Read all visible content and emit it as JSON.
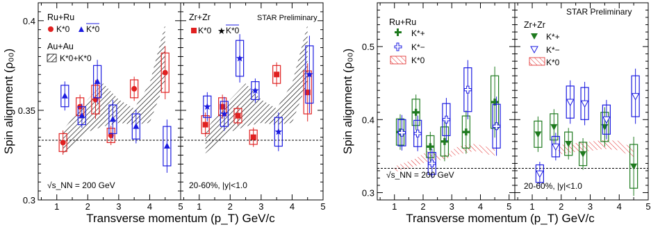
{
  "chart_data": [
    {
      "type": "scatter",
      "ylabel": "Spin alignment (ρ₀₀)",
      "xlabel": "Transverse momentum (p_T) GeV/c",
      "ylim": [
        0.3,
        0.41
      ],
      "yticks": [
        0.3,
        0.35,
        0.4
      ],
      "ytick_labels": [
        "0.3",
        "0.35",
        "0.4"
      ],
      "reference_line": 0.3333,
      "panels": [
        {
          "xlim": [
            0.4,
            5.0
          ],
          "xticks": [
            1,
            2,
            3,
            4,
            5
          ],
          "xtick_labels": [
            "1",
            "2",
            "3",
            "4",
            "5"
          ],
          "legend": {
            "system": "Ru+Ru",
            "neutral": "K*0",
            "anti": "K*0",
            "band_system": "Au+Au",
            "band_label": "K*0+K*0"
          },
          "annotation": "√s_NN = 200 GeV",
          "series": [
            {
              "kind": "K*0",
              "color": "#e02020",
              "marker": "circle",
              "x": [
                1.2,
                1.75,
                2.25,
                2.75,
                3.5,
                4.5
              ],
              "y": [
                0.332,
                0.352,
                0.356,
                0.336,
                0.362,
                0.371
              ],
              "sys": [
                0.005,
                0.005,
                0.008,
                0.004,
                0.005,
                0.011
              ]
            },
            {
              "kind": "antiK*0",
              "color": "#1a1ae0",
              "marker": "triangle",
              "x": [
                1.2,
                1.75,
                2.25,
                2.75,
                3.5,
                4.5
              ],
              "y": [
                0.358,
                0.347,
                0.366,
                0.345,
                0.341,
                0.33
              ],
              "sys": [
                0.006,
                0.005,
                0.009,
                0.008,
                0.007,
                0.011
              ]
            }
          ],
          "band": {
            "x": [
              1.2,
              2.0,
              2.5,
              3.0,
              3.5,
              4.0,
              4.5
            ],
            "lo": [
              0.326,
              0.338,
              0.341,
              0.343,
              0.342,
              0.343,
              0.366
            ],
            "hi": [
              0.339,
              0.356,
              0.365,
              0.356,
              0.351,
              0.365,
              0.398
            ]
          }
        },
        {
          "xlim": [
            0.4,
            5.0
          ],
          "xticks": [
            1,
            2,
            3,
            4,
            5
          ],
          "xtick_labels": [
            "1",
            "2",
            "3",
            "4",
            "5"
          ],
          "legend": {
            "system": "Zr+Zr",
            "neutral": "K*0",
            "anti": "K*0"
          },
          "preliminary": "STAR Preliminary",
          "annotation": "20-60%, |y|<1.0",
          "series": [
            {
              "kind": "K*0",
              "color": "#e02020",
              "marker": "square",
              "x": [
                1.2,
                1.75,
                2.25,
                2.75,
                3.5,
                4.5
              ],
              "y": [
                0.342,
                0.352,
                0.347,
                0.335,
                0.37,
                0.36
              ],
              "sys": [
                0.005,
                0.005,
                0.004,
                0.004,
                0.005,
                0.012
              ]
            },
            {
              "kind": "antiK*0",
              "color": "#1a1ae0",
              "marker": "star",
              "x": [
                1.2,
                1.75,
                2.25,
                2.75,
                3.5,
                4.5
              ],
              "y": [
                0.352,
                0.348,
                0.379,
                0.361,
                0.338,
                0.37
              ],
              "sys": [
                0.006,
                0.007,
                0.01,
                0.005,
                0.008,
                0.016
              ]
            }
          ],
          "band": {
            "x": [
              1.2,
              2.0,
              2.5,
              3.0,
              3.5,
              4.0,
              4.5
            ],
            "lo": [
              0.326,
              0.338,
              0.341,
              0.343,
              0.342,
              0.343,
              0.366
            ],
            "hi": [
              0.339,
              0.356,
              0.365,
              0.356,
              0.351,
              0.365,
              0.398
            ]
          }
        }
      ]
    },
    {
      "type": "scatter",
      "ylabel": "Spin alignment (ρ₀₀)",
      "xlabel": "Transverse momentum (p_T) GeV/c",
      "ylim": [
        0.29,
        0.56
      ],
      "yticks": [
        0.3,
        0.4,
        0.5
      ],
      "ytick_labels": [
        "0.3",
        "0.4",
        "0.5"
      ],
      "reference_line": 0.3333,
      "panels": [
        {
          "xlim": [
            0.4,
            5.2
          ],
          "xticks": [
            1,
            2,
            3,
            4,
            5
          ],
          "xtick_labels": [
            "1",
            "2",
            "3",
            "4",
            "5"
          ],
          "legend": {
            "system": "Ru+Ru",
            "plus": "K*+",
            "minus": "K*−",
            "band_label": "K*0"
          },
          "annotation": "√s_NN = 200 GeV",
          "series": [
            {
              "kind": "K*+",
              "color": "#1e7a1e",
              "marker": "cross",
              "x": [
                1.2,
                1.75,
                2.25,
                2.75,
                3.5,
                4.5
              ],
              "y": [
                0.383,
                0.41,
                0.363,
                0.37,
                0.383,
                0.424
              ],
              "sys": [
                0.018,
                0.018,
                0.015,
                0.02,
                0.022,
                0.036
              ]
            },
            {
              "kind": "K*−",
              "color": "#1a1ae0",
              "marker": "opencross",
              "x": [
                1.2,
                1.75,
                2.25,
                2.75,
                3.5,
                4.5
              ],
              "y": [
                0.382,
                0.381,
                0.34,
                0.4,
                0.441,
                0.391
              ],
              "sys": [
                0.018,
                0.018,
                0.015,
                0.022,
                0.03,
                0.03
              ]
            }
          ],
          "band": {
            "x": [
              1.0,
              1.7,
              2.2,
              2.7,
              3.2,
              3.8,
              4.5
            ],
            "lo": [
              0.328,
              0.336,
              0.343,
              0.345,
              0.352,
              0.357,
              0.35
            ],
            "hi": [
              0.336,
              0.346,
              0.358,
              0.35,
              0.363,
              0.367,
              0.36
            ]
          }
        },
        {
          "xlim": [
            0.4,
            5.0
          ],
          "xticks": [
            1,
            2,
            3,
            4,
            5
          ],
          "xtick_labels": [
            "1",
            "2",
            "3",
            "4",
            "5"
          ],
          "legend": {
            "system": "Zr+Zr",
            "plus": "K*+",
            "minus": "K*−",
            "band_label": "K*0"
          },
          "preliminary": "STAR Preliminary",
          "annotation": "20-60%, |y|<1.0",
          "series": [
            {
              "kind": "K*+",
              "color": "#1e7a1e",
              "marker": "tridown",
              "x": [
                1.2,
                1.75,
                2.25,
                2.75,
                3.5,
                4.5
              ],
              "y": [
                0.38,
                0.39,
                0.367,
                0.353,
                0.39,
                0.336
              ],
              "sys": [
                0.018,
                0.018,
                0.016,
                0.016,
                0.02,
                0.03
              ]
            },
            {
              "kind": "K*−",
              "color": "#1a1ae0",
              "marker": "opentridown",
              "x": [
                1.2,
                1.75,
                2.25,
                2.75,
                3.5,
                4.5
              ],
              "y": [
                0.326,
                0.363,
                0.424,
                0.422,
                0.4,
                0.432
              ],
              "sys": [
                0.012,
                0.014,
                0.022,
                0.022,
                0.02,
                0.028
              ]
            }
          ],
          "band": {
            "x": [
              1.9,
              2.5,
              3.0,
              3.5,
              4.0,
              4.5
            ],
            "lo": [
              0.352,
              0.356,
              0.357,
              0.36,
              0.358,
              0.348
            ],
            "hi": [
              0.365,
              0.368,
              0.37,
              0.372,
              0.371,
              0.36
            ]
          }
        }
      ]
    }
  ]
}
